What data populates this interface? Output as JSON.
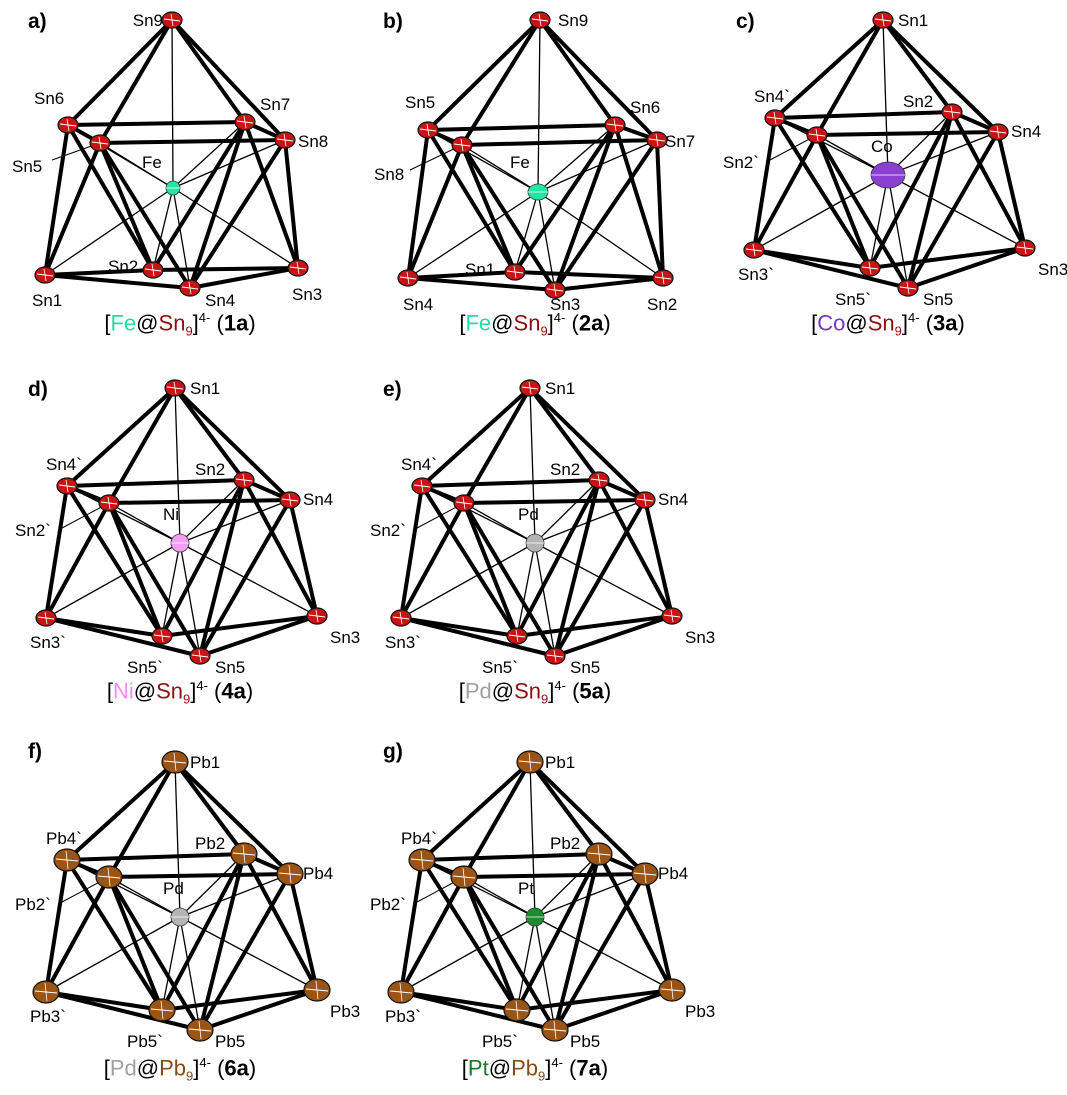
{
  "colors": {
    "sn": "#c81414",
    "pb": "#9a5516",
    "fe": "#22e6a6",
    "co": "#8a3fd0",
    "ni": "#f29cf2",
    "pd": "#b4b4b4",
    "pt": "#1f8a2e",
    "sn_text": "#8b1010",
    "pb_text": "#8b4a16",
    "fe_text": "#22dca0",
    "co_text": "#7a35c8",
    "ni_text": "#f28cf0",
    "pd_text": "#a0a0a0",
    "pt_text": "#1a7a28"
  },
  "panels": [
    {
      "letter": "a)",
      "center_label": "Fe",
      "atom_labels": [
        "Sn9",
        "Sn6",
        "Sn7",
        "Sn8",
        "Sn5",
        "Sn1",
        "Sn2",
        "Sn4",
        "Sn3"
      ],
      "caption": {
        "open": "[",
        "metal": "Fe",
        "at": "@",
        "cluster": "Sn",
        "sub": "9",
        "close": "]",
        "charge": "4-",
        "id_open": " (",
        "id_num": "1",
        "id_letter": "a",
        "id_close": ")"
      }
    },
    {
      "letter": "b)",
      "center_label": "Fe",
      "atom_labels": [
        "Sn9",
        "Sn5",
        "Sn6",
        "Sn7",
        "Sn8",
        "Sn4",
        "Sn1",
        "Sn3",
        "Sn2"
      ],
      "caption": {
        "open": "[",
        "metal": "Fe",
        "at": "@",
        "cluster": "Sn",
        "sub": "9",
        "close": "]",
        "charge": "4-",
        "id_open": " (",
        "id_num": "2",
        "id_letter": "a",
        "id_close": ")"
      }
    },
    {
      "letter": "c)",
      "center_label": "Co",
      "atom_labels": [
        "Sn1",
        "Sn4`",
        "Sn2",
        "Sn4",
        "Sn2`",
        "Sn3`",
        "Sn5`",
        "Sn5",
        "Sn3"
      ],
      "caption": {
        "open": "[",
        "metal": "Co",
        "at": "@",
        "cluster": "Sn",
        "sub": "9",
        "close": "]",
        "charge": "4-",
        "id_open": " (",
        "id_num": "3",
        "id_letter": "a",
        "id_close": ")"
      }
    },
    {
      "letter": "d)",
      "center_label": "Ni",
      "atom_labels": [
        "Sn1",
        "Sn4`",
        "Sn2",
        "Sn4",
        "Sn2`",
        "Sn3`",
        "Sn5`",
        "Sn5",
        "Sn3"
      ],
      "caption": {
        "open": "[",
        "metal": "Ni",
        "at": "@",
        "cluster": "Sn",
        "sub": "9",
        "close": "]",
        "charge": "4-",
        "id_open": " (",
        "id_num": "4",
        "id_letter": "a",
        "id_close": ")"
      }
    },
    {
      "letter": "e)",
      "center_label": "Pd",
      "atom_labels": [
        "Sn1",
        "Sn4`",
        "Sn2",
        "Sn4",
        "Sn2`",
        "Sn3`",
        "Sn5`",
        "Sn5",
        "Sn3"
      ],
      "caption": {
        "open": "[",
        "metal": "Pd",
        "at": "@",
        "cluster": "Sn",
        "sub": "9",
        "close": "]",
        "charge": "4-",
        "id_open": " (",
        "id_num": "5",
        "id_letter": "a",
        "id_close": ")"
      }
    },
    {
      "letter": "f)",
      "center_label": "Pd",
      "atom_labels": [
        "Pb1",
        "Pb4`",
        "Pb2",
        "Pb4",
        "Pb2`",
        "Pb3`",
        "Pb5`",
        "Pb5",
        "Pb3"
      ],
      "caption": {
        "open": "[",
        "metal": "Pd",
        "at": "@",
        "cluster": "Pb",
        "sub": "9",
        "close": "]",
        "charge": "4-",
        "id_open": " (",
        "id_num": "6",
        "id_letter": "a",
        "id_close": ")"
      }
    },
    {
      "letter": "g)",
      "center_label": "Pt",
      "atom_labels": [
        "Pb1",
        "Pb4`",
        "Pb2",
        "Pb4",
        "Pb2`",
        "Pb3`",
        "Pb5`",
        "Pb5",
        "Pb3"
      ],
      "caption": {
        "open": "[",
        "metal": "Pt",
        "at": "@",
        "cluster": "Pb",
        "sub": "9",
        "close": "]",
        "charge": "4-",
        "id_open": " (",
        "id_num": "7",
        "id_letter": "a",
        "id_close": ")"
      }
    }
  ]
}
